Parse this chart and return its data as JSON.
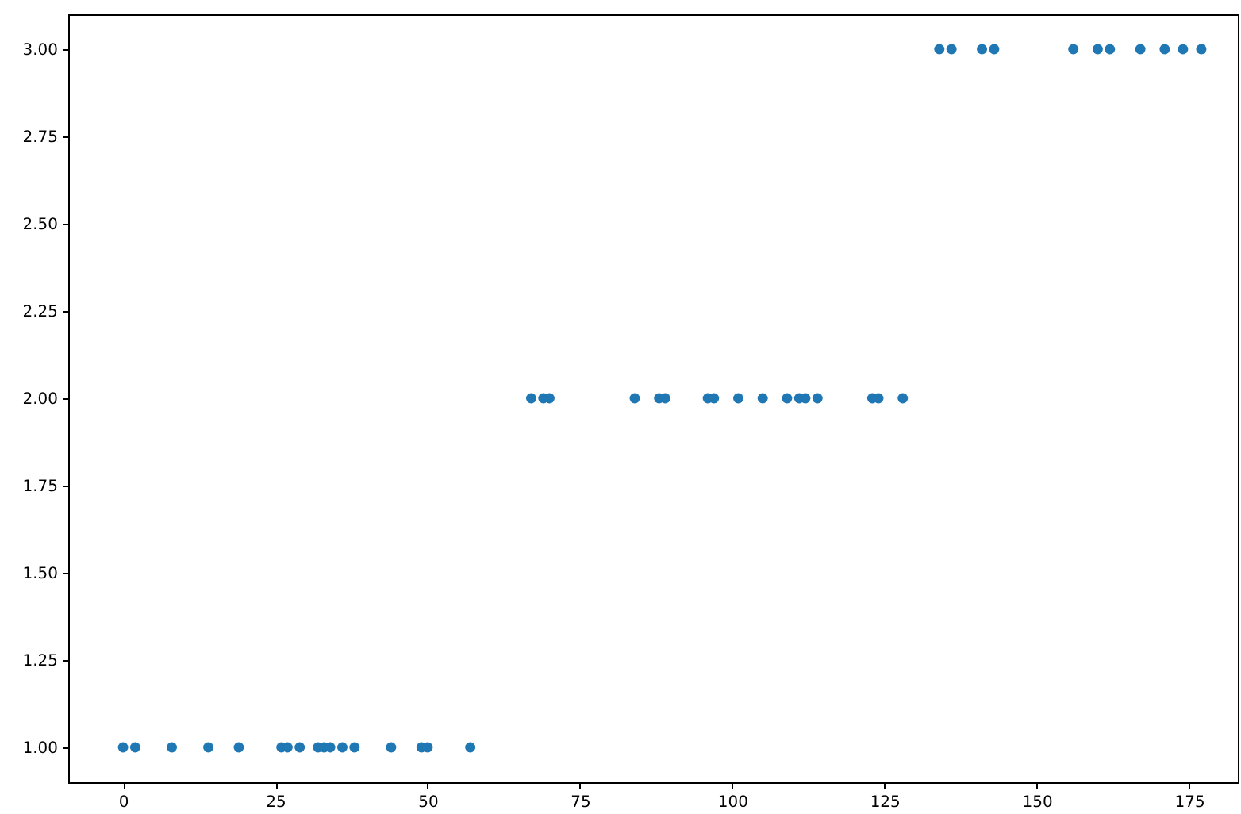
{
  "chart_data": {
    "type": "scatter",
    "marker": "circle",
    "grid": false,
    "xlim": [
      -9,
      183
    ],
    "xticks": [
      0,
      25,
      50,
      75,
      100,
      125,
      150,
      175
    ],
    "ylim": [
      0.9,
      3.1
    ],
    "yticks": [
      {
        "value": 1,
        "label": "1.00"
      },
      {
        "value": 1.25,
        "label": "1.25"
      },
      {
        "value": 1.5,
        "label": "1.50"
      },
      {
        "value": 1.75,
        "label": "1.75"
      },
      {
        "value": 2,
        "label": "2.00"
      },
      {
        "value": 2.25,
        "label": "2.25"
      },
      {
        "value": 2.5,
        "label": "2.50"
      },
      {
        "value": 2.75,
        "label": "2.75"
      },
      {
        "value": 3,
        "label": "3.00"
      }
    ],
    "series": [
      {
        "color": "#1f77b4",
        "x": [
          0,
          2,
          8,
          14,
          19,
          26,
          27,
          29,
          32,
          33,
          34,
          36,
          38,
          44,
          49,
          50,
          57,
          67,
          69,
          70,
          84,
          88,
          89,
          96,
          97,
          101,
          105,
          109,
          111,
          112,
          114,
          123,
          124,
          128,
          134,
          136,
          141,
          143,
          156,
          160,
          162,
          167,
          171,
          174,
          177
        ],
        "values": [
          1,
          1,
          1,
          1,
          1,
          1,
          1,
          1,
          1,
          1,
          1,
          1,
          1,
          1,
          1,
          1,
          1,
          2,
          2,
          2,
          2,
          2,
          2,
          2,
          2,
          2,
          2,
          2,
          2,
          2,
          2,
          2,
          2,
          2,
          3,
          3,
          3,
          3,
          3,
          3,
          3,
          3,
          3,
          3,
          3
        ]
      }
    ]
  }
}
